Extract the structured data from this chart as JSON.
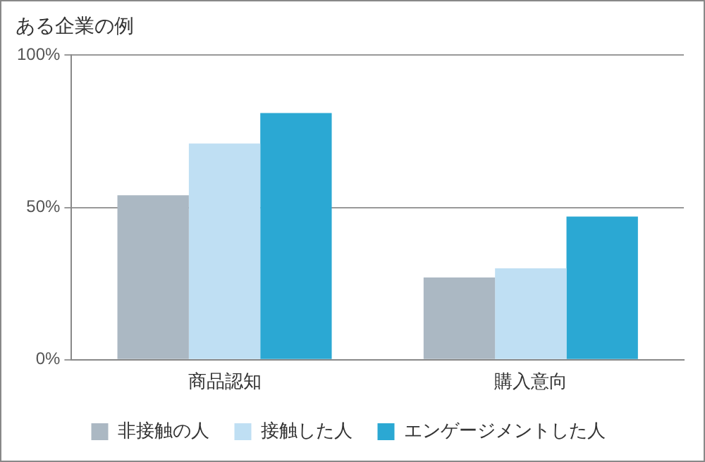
{
  "chart_data": {
    "type": "bar",
    "title": "ある企業の例",
    "categories": [
      "商品認知",
      "購入意向"
    ],
    "series": [
      {
        "name": "非接触の人",
        "color": "#abb8c3",
        "values": [
          54,
          27
        ]
      },
      {
        "name": "接触した人",
        "color": "#bfdff3",
        "values": [
          71,
          30
        ]
      },
      {
        "name": "エンゲージメントした人",
        "color": "#2ba8d3",
        "values": [
          81,
          47
        ]
      }
    ],
    "ylim": [
      0,
      100
    ],
    "yticks": [
      {
        "value": 0,
        "label": "0%"
      },
      {
        "value": 50,
        "label": "50%"
      },
      {
        "value": 100,
        "label": "100%"
      }
    ],
    "grid": "y",
    "legend": "bottom"
  }
}
